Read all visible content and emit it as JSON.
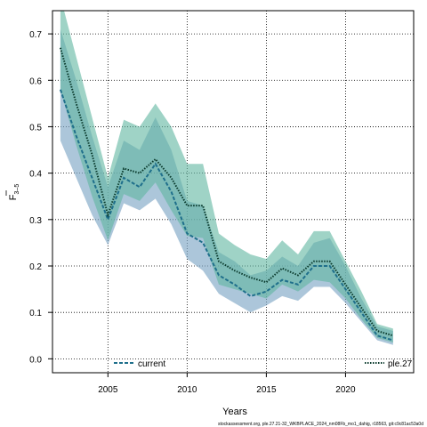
{
  "chart_data": {
    "type": "line",
    "xlabel": "Years",
    "ylabel_main": "F",
    "ylabel_sub": "3–5",
    "xlim": [
      2001.5,
      2024.3
    ],
    "ylim": [
      -0.03,
      0.75
    ],
    "x_ticks": [
      2005,
      2010,
      2015,
      2020
    ],
    "y_ticks": [
      0.0,
      0.1,
      0.2,
      0.3,
      0.4,
      0.5,
      0.6,
      0.7
    ],
    "y_tick_labels": [
      "0.0",
      "0.1",
      "0.2",
      "0.3",
      "0.4",
      "0.5",
      "0.6",
      "0.7"
    ],
    "grid": true,
    "legend_placement": "bottom",
    "footer": "stockassessment.org, ple.27.21-32_WKBPLACE_2024_nm08Fb_mo1_dahig, r18563, git:c9c81ac53a0d",
    "x": [
      2002,
      2003,
      2004,
      2005,
      2006,
      2007,
      2008,
      2009,
      2010,
      2011,
      2012,
      2013,
      2014,
      2015,
      2016,
      2017,
      2018,
      2019,
      2020,
      2021,
      2022,
      2023
    ],
    "series": [
      {
        "name": "current",
        "color": "#1f6f8b",
        "band_color": "#7fa8c6",
        "line_style": "dashed",
        "values": [
          0.58,
          0.48,
          0.39,
          0.3,
          0.39,
          0.37,
          0.42,
          0.36,
          0.27,
          0.25,
          0.18,
          0.16,
          0.135,
          0.145,
          0.17,
          0.16,
          0.2,
          0.2,
          0.15,
          0.1,
          0.05,
          0.04
        ],
        "lower": [
          0.47,
          0.39,
          0.31,
          0.245,
          0.335,
          0.32,
          0.345,
          0.29,
          0.215,
          0.19,
          0.14,
          0.12,
          0.1,
          0.115,
          0.135,
          0.125,
          0.155,
          0.155,
          0.12,
          0.08,
          0.04,
          0.03
        ],
        "upper": [
          0.71,
          0.6,
          0.48,
          0.37,
          0.47,
          0.45,
          0.52,
          0.45,
          0.34,
          0.33,
          0.23,
          0.21,
          0.18,
          0.19,
          0.22,
          0.2,
          0.25,
          0.26,
          0.2,
          0.13,
          0.07,
          0.06
        ]
      },
      {
        "name": "ple.27",
        "color": "#0b3b2e",
        "band_color": "#5fb5a0",
        "line_style": "dotted",
        "values": [
          0.67,
          0.55,
          0.44,
          0.31,
          0.41,
          0.4,
          0.43,
          0.39,
          0.33,
          0.33,
          0.21,
          0.19,
          0.175,
          0.165,
          0.195,
          0.18,
          0.21,
          0.21,
          0.16,
          0.11,
          0.06,
          0.05
        ],
        "lower": [
          0.58,
          0.46,
          0.35,
          0.255,
          0.355,
          0.34,
          0.38,
          0.32,
          0.265,
          0.26,
          0.16,
          0.15,
          0.14,
          0.13,
          0.16,
          0.145,
          0.17,
          0.165,
          0.13,
          0.085,
          0.045,
          0.035
        ],
        "upper": [
          0.78,
          0.65,
          0.52,
          0.39,
          0.515,
          0.5,
          0.55,
          0.5,
          0.42,
          0.42,
          0.27,
          0.245,
          0.225,
          0.215,
          0.255,
          0.225,
          0.275,
          0.275,
          0.21,
          0.145,
          0.075,
          0.065
        ]
      }
    ]
  }
}
